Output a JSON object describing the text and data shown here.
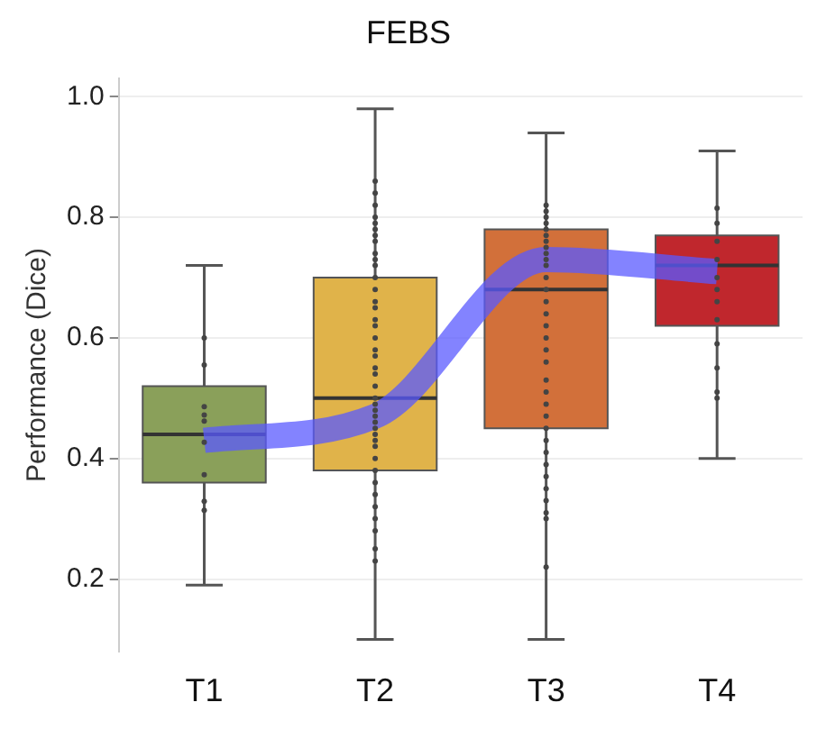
{
  "chart_data": {
    "type": "box",
    "title": "FEBS",
    "ylabel": "Performance (Dice)",
    "categories": [
      "T1",
      "T2",
      "T3",
      "T4"
    ],
    "colors": [
      "#8aa05a",
      "#e0b34a",
      "#d2703a",
      "#c0272d"
    ],
    "boxes": [
      {
        "low": 0.19,
        "q1": 0.36,
        "median": 0.44,
        "q3": 0.52,
        "high": 0.72
      },
      {
        "low": 0.1,
        "q1": 0.38,
        "median": 0.5,
        "q3": 0.7,
        "high": 0.98
      },
      {
        "low": 0.1,
        "q1": 0.45,
        "median": 0.68,
        "q3": 0.78,
        "high": 0.94
      },
      {
        "low": 0.4,
        "q1": 0.62,
        "median": 0.72,
        "q3": 0.77,
        "high": 0.91
      }
    ],
    "ylim": [
      0.08,
      1.03
    ],
    "yticks": [
      0.2,
      0.4,
      0.6,
      0.8,
      {
        "value": 1,
        "label": "1.0"
      }
    ],
    "grid": "y",
    "legend": false,
    "series": [
      {
        "type": "scatter",
        "color": "#444444",
        "x": [
          "T1",
          "T1",
          "T1",
          "T1",
          "T1",
          "T1",
          "T1",
          "T1",
          "T1",
          "T2",
          "T2",
          "T2",
          "T2",
          "T2",
          "T2",
          "T2",
          "T2",
          "T2",
          "T2",
          "T2",
          "T2",
          "T2",
          "T2",
          "T2",
          "T2",
          "T2",
          "T2",
          "T2",
          "T2",
          "T2",
          "T2",
          "T2",
          "T2",
          "T2",
          "T2",
          "T2",
          "T2",
          "T2",
          "T2",
          "T2",
          "T2",
          "T2",
          "T2",
          "T2",
          "T2",
          "T2",
          "T2",
          "T2",
          "T2",
          "T2",
          "T3",
          "T3",
          "T3",
          "T3",
          "T3",
          "T3",
          "T3",
          "T3",
          "T3",
          "T3",
          "T3",
          "T3",
          "T3",
          "T3",
          "T3",
          "T3",
          "T3",
          "T3",
          "T3",
          "T3",
          "T3",
          "T3",
          "T3",
          "T3",
          "T3",
          "T3",
          "T3",
          "T3",
          "T3",
          "T3",
          "T3",
          "T3",
          "T3",
          "T4",
          "T4",
          "T4",
          "T4",
          "T4",
          "T4",
          "T4",
          "T4",
          "T4",
          "T4",
          "T4",
          "T4"
        ],
        "values": [
          0.6,
          0.555,
          0.486,
          0.472,
          0.462,
          0.427,
          0.373,
          0.329,
          0.314,
          0.86,
          0.84,
          0.82,
          0.8,
          0.79,
          0.78,
          0.77,
          0.76,
          0.74,
          0.73,
          0.72,
          0.7,
          0.68,
          0.66,
          0.65,
          0.63,
          0.62,
          0.6,
          0.58,
          0.57,
          0.55,
          0.54,
          0.52,
          0.5,
          0.49,
          0.48,
          0.47,
          0.46,
          0.45,
          0.44,
          0.43,
          0.42,
          0.4,
          0.38,
          0.36,
          0.34,
          0.32,
          0.3,
          0.28,
          0.25,
          0.23,
          0.82,
          0.81,
          0.8,
          0.79,
          0.78,
          0.77,
          0.76,
          0.75,
          0.74,
          0.73,
          0.72,
          0.7,
          0.68,
          0.66,
          0.64,
          0.62,
          0.6,
          0.58,
          0.56,
          0.53,
          0.51,
          0.49,
          0.47,
          0.45,
          0.43,
          0.41,
          0.39,
          0.37,
          0.35,
          0.33,
          0.31,
          0.3,
          0.22,
          0.815,
          0.79,
          0.76,
          0.73,
          0.7,
          0.68,
          0.66,
          0.63,
          0.59,
          0.55,
          0.51,
          0.5
        ]
      },
      {
        "type": "line",
        "color": "#5a5aff",
        "values": [
          0.43,
          0.47,
          0.73,
          0.71
        ]
      }
    ]
  }
}
